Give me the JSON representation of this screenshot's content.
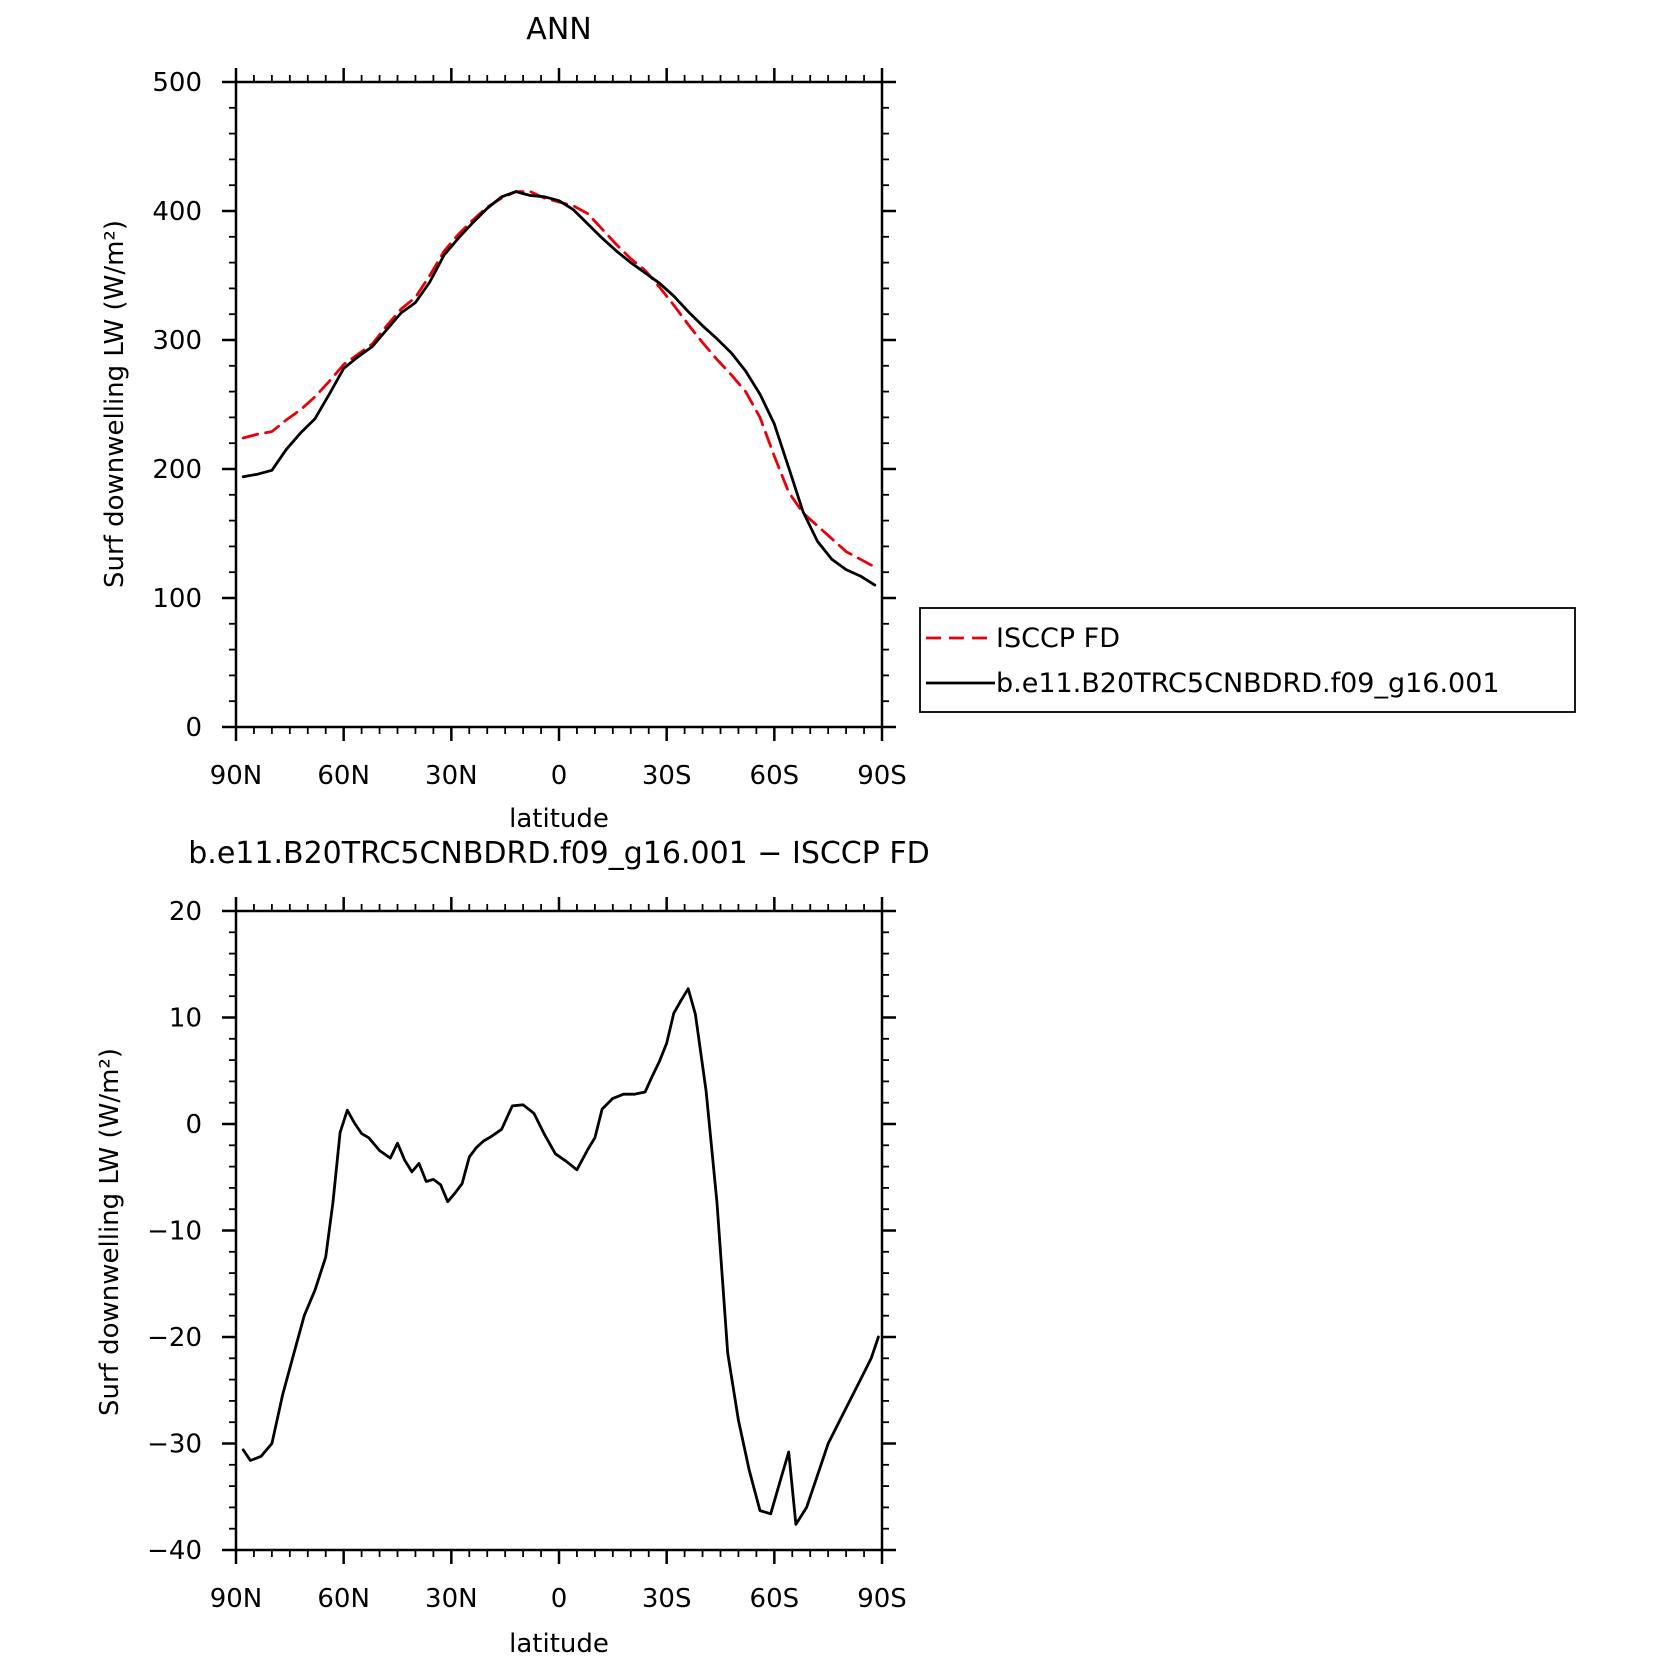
{
  "chart_data": [
    {
      "type": "line",
      "title": "ANN",
      "xlabel": "latitude",
      "ylabel": "Surf downwelling LW (W/m²)",
      "xlim": [
        90,
        -90
      ],
      "ylim": [
        0,
        500
      ],
      "xticks": [
        90,
        60,
        30,
        0,
        -30,
        -60,
        -90
      ],
      "xtick_labels": [
        "90N",
        "60N",
        "30N",
        "0",
        "30S",
        "60S",
        "90S"
      ],
      "yticks": [
        0,
        100,
        200,
        300,
        400,
        500
      ],
      "ytick_labels": [
        "0",
        "100",
        "200",
        "300",
        "400",
        "500"
      ],
      "legend_position": "right",
      "series": [
        {
          "name": "ISCCP FD",
          "color": "#e8000b",
          "dash": "dashed",
          "x": [
            88,
            84,
            80,
            76,
            72,
            68,
            64,
            60,
            56,
            52,
            48,
            44,
            40,
            36,
            32,
            28,
            24,
            20,
            16,
            12,
            8,
            4,
            0,
            -4,
            -8,
            -12,
            -16,
            -20,
            -24,
            -28,
            -32,
            -36,
            -40,
            -44,
            -48,
            -52,
            -56,
            -60,
            -64,
            -68,
            -72,
            -76,
            -80,
            -84,
            -88
          ],
          "y": [
            224,
            227,
            229,
            238,
            246,
            256,
            268,
            281,
            289,
            297,
            311,
            324,
            333,
            350,
            369,
            382,
            393,
            403,
            410,
            415,
            415,
            410,
            407,
            404,
            398,
            386,
            374,
            363,
            354,
            341,
            327,
            312,
            298,
            285,
            273,
            260,
            240,
            210,
            182,
            166,
            156,
            146,
            136,
            130,
            124
          ]
        },
        {
          "name": "b.e11.B20TRC5CNBDRD.f09_g16.001",
          "color": "#000000",
          "dash": "solid",
          "x": [
            88,
            84,
            80,
            76,
            72,
            68,
            64,
            60,
            56,
            52,
            48,
            44,
            40,
            36,
            32,
            28,
            24,
            20,
            16,
            12,
            8,
            4,
            0,
            -4,
            -8,
            -12,
            -16,
            -20,
            -24,
            -28,
            -32,
            -36,
            -40,
            -44,
            -48,
            -52,
            -56,
            -60,
            -64,
            -68,
            -72,
            -76,
            -80,
            -84,
            -88
          ],
          "y": [
            194,
            196,
            199,
            215,
            228,
            239,
            258,
            278,
            287,
            295,
            308,
            321,
            329,
            345,
            366,
            379,
            391,
            402,
            411,
            415,
            412,
            411,
            408,
            401,
            390,
            379,
            369,
            360,
            352,
            344,
            334,
            322,
            311,
            301,
            290,
            276,
            258,
            235,
            201,
            167,
            144,
            130,
            122,
            117,
            110
          ]
        }
      ]
    },
    {
      "type": "line",
      "title": "b.e11.B20TRC5CNBDRD.f09_g16.001 − ISCCP FD",
      "xlabel": "latitude",
      "ylabel": "Surf downwelling LW (W/m²)",
      "xlim": [
        90,
        -90
      ],
      "ylim": [
        -40,
        20
      ],
      "xticks": [
        90,
        60,
        30,
        0,
        -30,
        -60,
        -90
      ],
      "xtick_labels": [
        "90N",
        "60N",
        "30N",
        "0",
        "30S",
        "60S",
        "90S"
      ],
      "yticks": [
        -40,
        -30,
        -20,
        -10,
        0,
        10,
        20
      ],
      "ytick_labels": [
        "−40",
        "−30",
        "−20",
        "−10",
        "0",
        "10",
        "20"
      ],
      "series": [
        {
          "color": "#000000",
          "dash": "solid",
          "x": [
            88,
            86,
            83,
            80,
            77,
            74,
            71,
            68,
            65,
            63,
            61,
            59,
            57,
            55,
            53,
            50,
            47,
            45,
            43,
            41,
            39,
            37,
            35,
            33,
            31,
            29,
            27,
            25,
            23,
            21,
            19,
            16,
            13,
            10,
            7,
            4,
            1,
            -2,
            -5,
            -8,
            -10,
            -12,
            -15,
            -18,
            -21,
            -24,
            -26,
            -28,
            -30,
            -32,
            -34,
            -36,
            -38,
            -41,
            -44,
            -47,
            -50,
            -53,
            -56,
            -59,
            -62,
            -64,
            -66,
            -69,
            -72,
            -75,
            -78,
            -81,
            -84,
            -87,
            -89
          ],
          "y": [
            -30.6,
            -31.6,
            -31.2,
            -30,
            -25.4,
            -21.7,
            -18,
            -15.6,
            -12.5,
            -7.4,
            -0.8,
            1.3,
            0.1,
            -0.9,
            -1.3,
            -2.5,
            -3.2,
            -1.8,
            -3.4,
            -4.5,
            -3.7,
            -5.4,
            -5.2,
            -5.7,
            -7.3,
            -6.5,
            -5.6,
            -3.1,
            -2.2,
            -1.6,
            -1.2,
            -0.5,
            1.7,
            1.8,
            1,
            -1,
            -2.8,
            -3.5,
            -4.3,
            -2.4,
            -1.3,
            1.4,
            2.4,
            2.8,
            2.8,
            3,
            4.5,
            5.9,
            7.6,
            10.4,
            11.6,
            12.7,
            10.3,
            3.1,
            -7.3,
            -21.5,
            -27.8,
            -32.5,
            -36.3,
            -36.6,
            -33.1,
            -30.8,
            -37.6,
            -36,
            -33,
            -30,
            -28,
            -26,
            -24,
            -22,
            -20
          ]
        }
      ]
    }
  ]
}
